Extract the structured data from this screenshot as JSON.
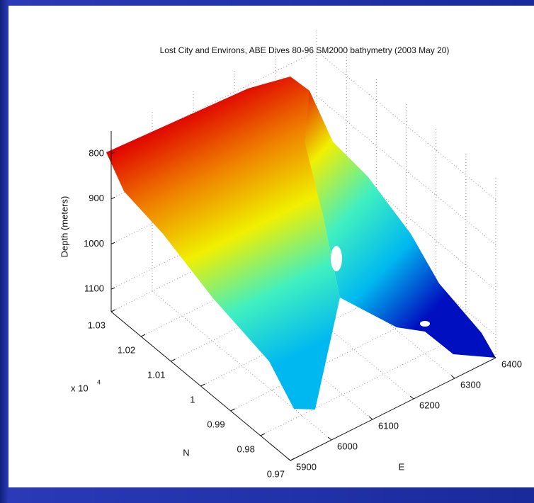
{
  "chart_data": {
    "type": "surface",
    "title": "Lost City and Environs, ABE Dives 80-96 SM2000 bathymetry (2003 May 20)",
    "zlabel": "Depth (meters)",
    "ylabel": "N",
    "xlabel": "E",
    "xlim": [
      5900,
      6400
    ],
    "xticks": [
      5900,
      6000,
      6100,
      6200,
      6300,
      6400
    ],
    "ylim": [
      0.97,
      1.03
    ],
    "yticks": [
      0.97,
      0.98,
      0.99,
      1,
      1.01,
      1.02,
      1.03
    ],
    "y_multiplier": {
      "base": "x 10",
      "exponent": "4"
    },
    "zlim": [
      750,
      1150
    ],
    "zticks": [
      800,
      900,
      1000,
      1100
    ],
    "z_reversed": true,
    "grid": true,
    "colormap": [
      "#0010c0",
      "#00b8f0",
      "#40f0c0",
      "#f0f000",
      "#f08000",
      "#e00000"
    ]
  }
}
